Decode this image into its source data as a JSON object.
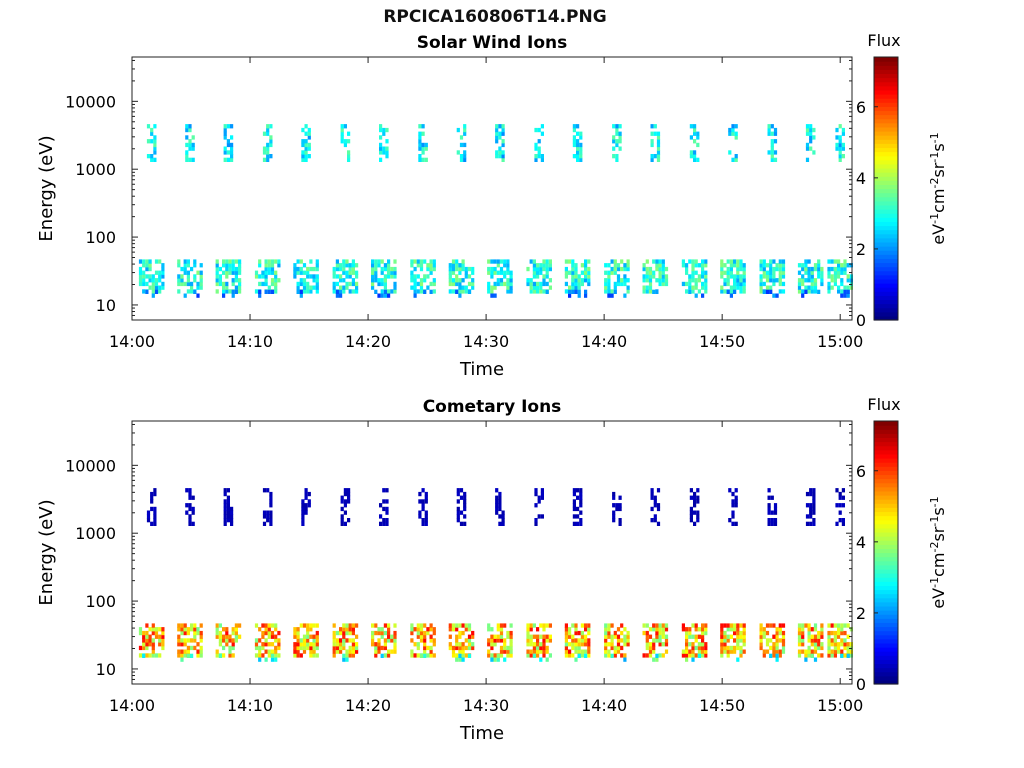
{
  "figure": {
    "title": "RPCICA160806T14.PNG"
  },
  "chart_data": [
    {
      "type": "heatmap",
      "title": "Solar Wind Ions",
      "xlabel": "Time",
      "ylabel": "Energy (eV)",
      "x_ticks": [
        "14:00",
        "14:10",
        "14:20",
        "14:30",
        "14:40",
        "14:50",
        "15:00"
      ],
      "xlim": [
        "14:00",
        "15:01"
      ],
      "y_scale": "log",
      "y_ticks": [
        "10",
        "100",
        "1000",
        "10000"
      ],
      "ylim": [
        6,
        45000
      ],
      "colorbar": {
        "title": "Flux",
        "label": "eV-1cm-2sr-1s-1",
        "range": [
          0,
          7.4
        ],
        "ticks": [
          "0",
          "2",
          "4",
          "6"
        ],
        "colormap": "jet"
      },
      "sweep_times": [
        "14:01:40",
        "14:04:55",
        "14:08:10",
        "14:11:30",
        "14:14:45",
        "14:18:05",
        "14:21:20",
        "14:24:40",
        "14:27:55",
        "14:31:10",
        "14:34:30",
        "14:37:45",
        "14:41:05",
        "14:44:20",
        "14:47:40",
        "14:50:55",
        "14:54:15",
        "14:57:30",
        "15:00:00"
      ],
      "high_energy_band_eV": [
        1300,
        4500
      ],
      "high_energy_peak_flux": 3.5,
      "low_energy_band_eV": [
        15,
        45
      ],
      "low_energy_peak_flux": 3.8
    },
    {
      "type": "heatmap",
      "title": "Cometary Ions",
      "xlabel": "Time",
      "ylabel": "Energy (eV)",
      "x_ticks": [
        "14:00",
        "14:10",
        "14:20",
        "14:30",
        "14:40",
        "14:50",
        "15:00"
      ],
      "xlim": [
        "14:00",
        "15:01"
      ],
      "y_scale": "log",
      "y_ticks": [
        "10",
        "100",
        "1000",
        "10000"
      ],
      "ylim": [
        6,
        45000
      ],
      "colorbar": {
        "title": "Flux",
        "label": "eV-1cm-2sr-1s-1",
        "range": [
          0,
          7.4
        ],
        "ticks": [
          "0",
          "2",
          "4",
          "6"
        ],
        "colormap": "jet"
      },
      "sweep_times": [
        "14:01:40",
        "14:04:55",
        "14:08:10",
        "14:11:30",
        "14:14:45",
        "14:18:05",
        "14:21:20",
        "14:24:40",
        "14:27:55",
        "14:31:10",
        "14:34:30",
        "14:37:45",
        "14:41:05",
        "14:44:20",
        "14:47:40",
        "14:50:55",
        "14:54:15",
        "14:57:30",
        "15:00:00"
      ],
      "high_energy_band_eV": [
        1300,
        4500
      ],
      "high_energy_peak_flux": 0.5,
      "low_energy_band_eV": [
        15,
        45
      ],
      "low_energy_peak_flux": 6.5
    }
  ]
}
